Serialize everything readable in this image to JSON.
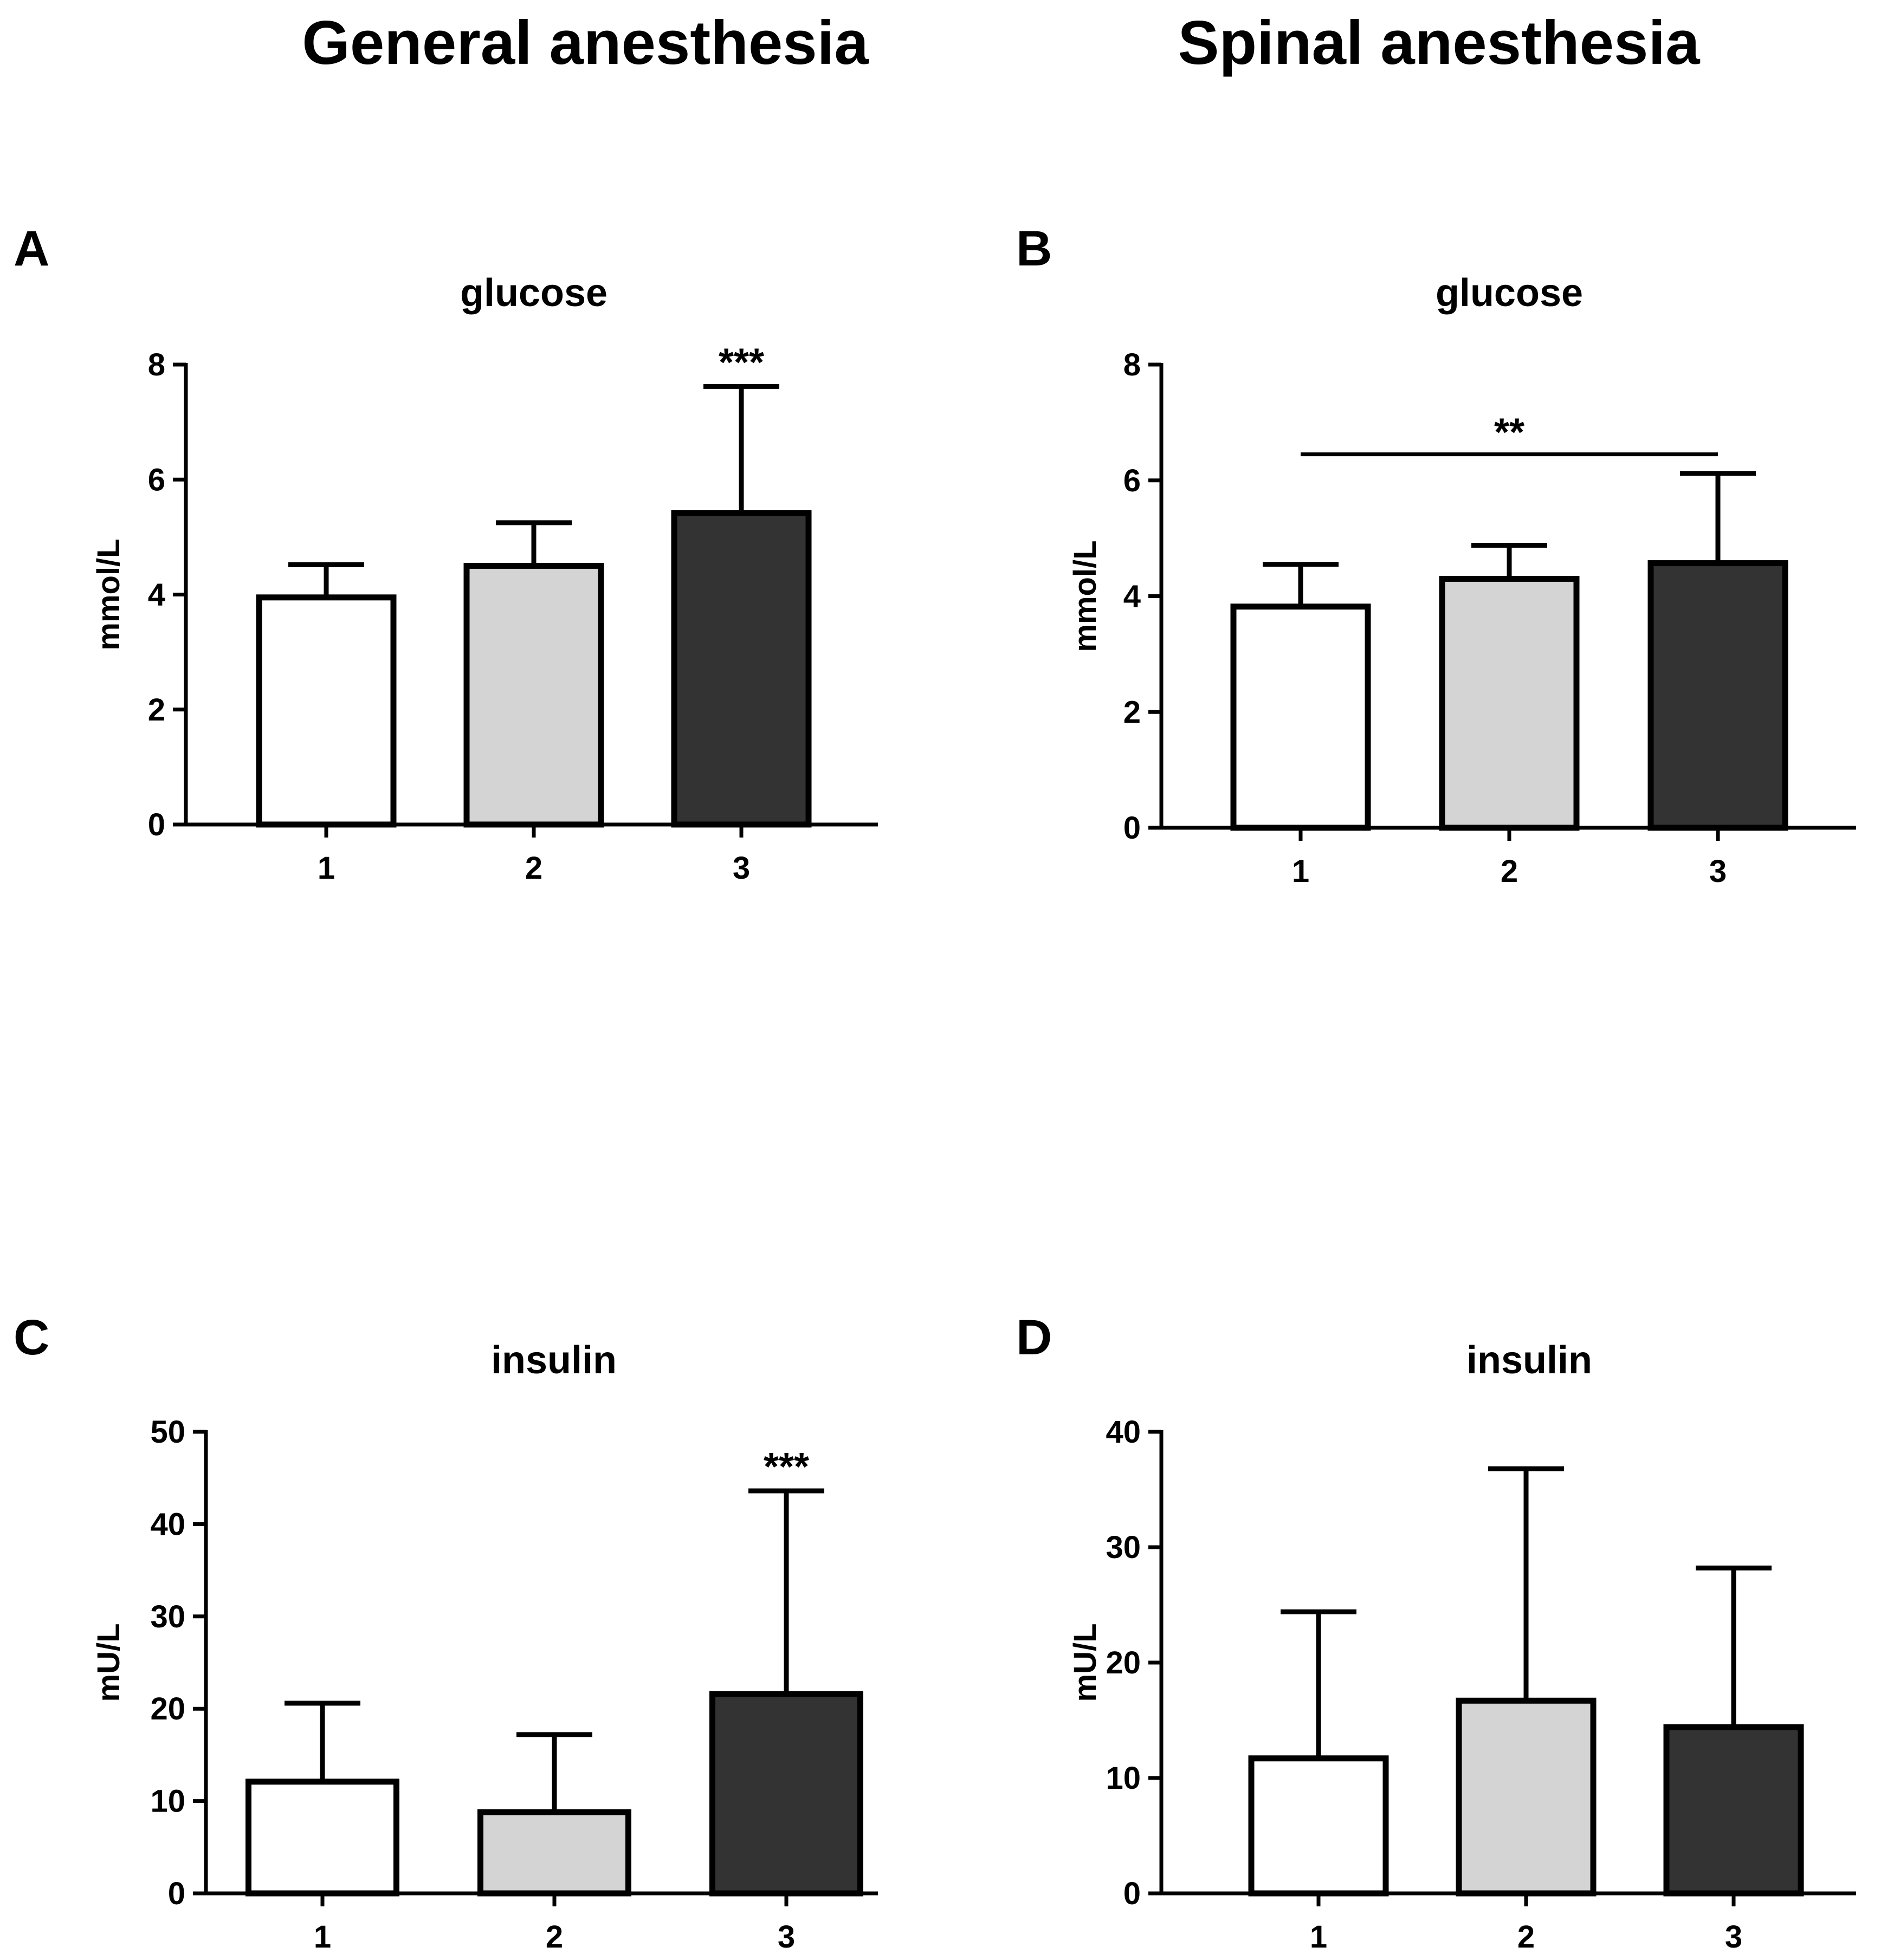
{
  "column_titles": [
    "General anesthesia",
    "Spinal anesthesia"
  ],
  "colors": {
    "group1": "#ffffff",
    "group2": "#d4d4d4",
    "group3": "#333333",
    "stroke": "#000000"
  },
  "chart_data": [
    {
      "panel": "A",
      "type": "bar",
      "title": "glucose",
      "ylabel": "mmol/L",
      "categories": [
        "1",
        "2",
        "3"
      ],
      "values": [
        3.95,
        4.5,
        5.42
      ],
      "error_upper": [
        4.52,
        5.25,
        7.62
      ],
      "ylim": [
        0,
        8
      ],
      "yticks": [
        0,
        2,
        4,
        6,
        8
      ],
      "significance": [
        {
          "label": "***",
          "bar": 3
        }
      ]
    },
    {
      "panel": "B",
      "type": "bar",
      "title": "glucose",
      "ylabel": "mmol/L",
      "categories": [
        "1",
        "2",
        "3"
      ],
      "values": [
        3.82,
        4.3,
        4.57
      ],
      "error_upper": [
        4.55,
        4.88,
        6.12
      ],
      "ylim": [
        0,
        8
      ],
      "yticks": [
        0,
        2,
        4,
        6,
        8
      ],
      "significance": [
        {
          "label": "**",
          "from": 1,
          "to": 3,
          "y": 6.45
        }
      ]
    },
    {
      "panel": "C",
      "type": "bar",
      "title": "insulin",
      "ylabel": "mU/L",
      "categories": [
        "1",
        "2",
        "3"
      ],
      "values": [
        12.1,
        8.8,
        21.6
      ],
      "error_upper": [
        20.6,
        17.2,
        43.6
      ],
      "ylim": [
        0,
        50
      ],
      "yticks": [
        0,
        10,
        20,
        30,
        40,
        50
      ],
      "significance": [
        {
          "label": "***",
          "bar": 3
        }
      ]
    },
    {
      "panel": "D",
      "type": "bar",
      "title": "insulin",
      "ylabel": "mU/L",
      "categories": [
        "1",
        "2",
        "3"
      ],
      "values": [
        11.7,
        16.7,
        14.4
      ],
      "error_upper": [
        24.4,
        36.8,
        28.2
      ],
      "ylim": [
        0,
        40
      ],
      "yticks": [
        0,
        10,
        20,
        30,
        40
      ],
      "significance": []
    }
  ]
}
